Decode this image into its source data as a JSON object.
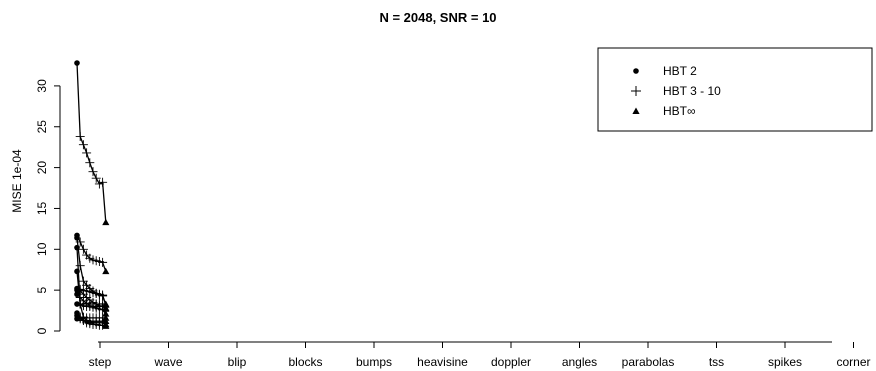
{
  "chart_data": {
    "type": "line",
    "title": "N = 2048, SNR = 10",
    "xlabel": "",
    "ylabel": "MISE 1e-04",
    "ylim": [
      0,
      32
    ],
    "yticks": [
      0,
      5,
      10,
      15,
      20,
      25,
      30
    ],
    "grid": false,
    "legend_position": "top-right",
    "categories": [
      "step",
      "wave",
      "blip",
      "blocks",
      "bumps",
      "heavisine",
      "doppler",
      "angles",
      "parabolas",
      "tss",
      "spikes",
      "corner"
    ],
    "legend": [
      {
        "label": "HBT 2",
        "marker": "circle"
      },
      {
        "label": "HBT 3 - 10",
        "marker": "plus"
      },
      {
        "label": "HBT∞",
        "marker": "triangle"
      }
    ],
    "series_note": "",
    "values": [
      [
        32.8,
        23.8,
        22.8,
        21.8,
        20.6,
        19.5,
        18.7,
        18.0,
        18.2,
        13.3
      ],
      [
        3.3,
        3.3,
        3.3,
        3.3,
        3.3,
        3.3,
        3.3,
        3.3,
        3.3,
        3.3
      ],
      [
        11.4,
        8.0,
        6.1,
        5.6,
        5.2,
        4.9,
        4.6,
        4.4,
        4.3,
        3.2
      ],
      [
        11.7,
        10.9,
        10.0,
        9.3,
        8.9,
        8.7,
        8.6,
        8.5,
        8.4,
        7.3
      ],
      [
        4.5,
        4.1,
        3.7,
        3.4,
        3.1,
        2.9,
        2.8,
        2.7,
        2.6,
        2.1
      ],
      [
        5.2,
        5.1,
        5.0,
        4.9,
        4.8,
        4.7,
        4.6,
        4.5,
        4.4,
        3.2
      ],
      [
        5.0,
        4.9,
        4.5,
        4.1,
        3.8,
        3.5,
        3.3,
        3.1,
        3.0,
        2.8
      ],
      [
        7.3,
        3.3,
        1.7,
        1.3,
        1.2,
        1.2,
        1.2,
        1.2,
        1.2,
        1.2
      ],
      [
        10.2,
        3.3,
        3.1,
        3.0,
        3.0,
        3.0,
        3.0,
        3.0,
        3.0,
        2.7
      ],
      [
        1.5,
        1.6,
        1.6,
        1.6,
        1.6,
        1.6,
        1.6,
        1.6,
        1.6,
        1.6
      ],
      [
        1.9,
        1.5,
        1.3,
        1.2,
        1.1,
        1.0,
        1.0,
        1.0,
        1.0,
        0.8
      ],
      [
        2.2,
        1.7,
        1.3,
        1.0,
        0.9,
        0.8,
        0.8,
        0.7,
        0.7,
        0.6
      ]
    ]
  }
}
